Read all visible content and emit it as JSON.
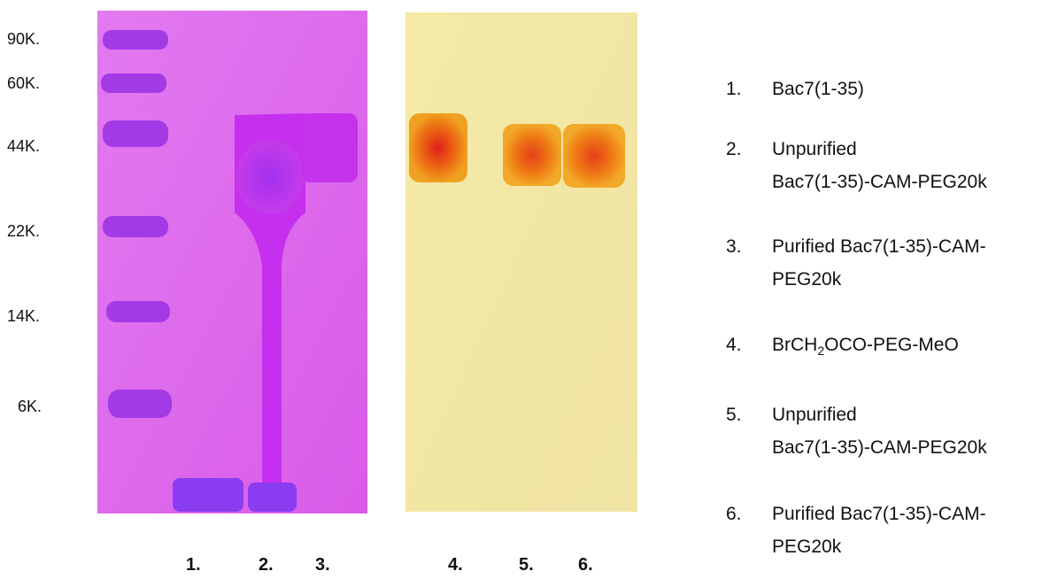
{
  "markers": [
    "90K.",
    "60K.",
    "44K.",
    "22K.",
    "14K.",
    "6K."
  ],
  "lanes": [
    "1.",
    "2.",
    "3.",
    "4.",
    "5.",
    "6."
  ],
  "legend": [
    {
      "number": "1.",
      "lines": [
        "Bac7(1-35)"
      ]
    },
    {
      "number": "2.",
      "lines": [
        "Unpurified",
        "Bac7(1-35)-CAM-PEG20k"
      ]
    },
    {
      "number": "3.",
      "lines": [
        "Purified Bac7(1-35)-CAM-",
        "PEG20k"
      ]
    },
    {
      "number": "4.",
      "parts": [
        "BrCH",
        "2",
        "OCO-PEG-MeO"
      ]
    },
    {
      "number": "5.",
      "lines": [
        "Unpurified",
        "Bac7(1-35)-CAM-PEG20k"
      ]
    },
    {
      "number": "6.",
      "lines": [
        "Purified Bac7(1-35)-CAM-",
        "PEG20k"
      ]
    }
  ]
}
